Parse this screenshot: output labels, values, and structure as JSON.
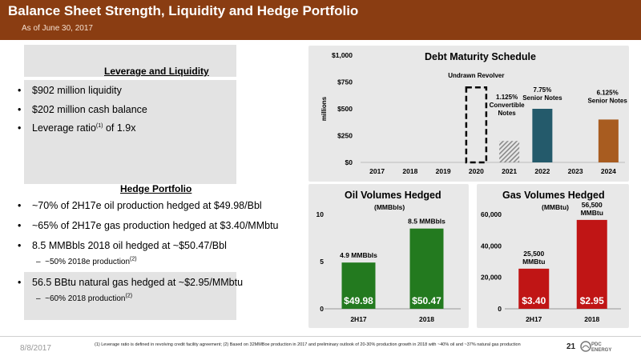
{
  "header": {
    "title": "Balance Sheet Strength, Liquidity and Hedge Portfolio",
    "subtitle": "As of June 30, 2017"
  },
  "leverage": {
    "heading": "Leverage and Liquidity",
    "bullets": [
      {
        "text": "$902 million liquidity"
      },
      {
        "text": "$202 million cash balance"
      },
      {
        "text_pre": "Leverage ratio",
        "sup": "(1)",
        "text_post": " of 1.9x"
      }
    ]
  },
  "hedge": {
    "heading": "Hedge Portfolio",
    "bullets": [
      {
        "text": "~70% of 2H17e oil production hedged at $49.98/Bbl"
      },
      {
        "text": "~65% of 2H17e gas production hedged at $3.40/MMbtu"
      },
      {
        "text": "8.5 MMBbls 2018 oil hedged at ~$50.47/Bbl"
      },
      {
        "text": "56.5 BBtu natural gas hedged at ~$2.95/MMbtu"
      }
    ],
    "sub_bullets": [
      {
        "text": "~50% 2018e production",
        "sup": "(2)"
      },
      {
        "text": "~60% 2018 production",
        "sup": "(2)"
      }
    ],
    "bullet_glyph": "•",
    "sub_glyph": "–"
  },
  "chart_data": [
    {
      "type": "bar",
      "title": "Debt Maturity Schedule",
      "ylabel": "millions",
      "categories": [
        "2017",
        "2018",
        "2019",
        "2020",
        "2021",
        "2022",
        "2023",
        "2024"
      ],
      "yticks": [
        "$0",
        "$250",
        "$500",
        "$750",
        "$1,000"
      ],
      "ylim": [
        0,
        1000
      ],
      "series": [
        {
          "name": "Undrawn Revolver",
          "values": [
            0,
            0,
            0,
            700,
            0,
            0,
            0,
            0
          ],
          "color": "#000000",
          "style": "dashed-outline"
        },
        {
          "name": "1.125% Convertible Notes",
          "values": [
            0,
            0,
            0,
            0,
            200,
            0,
            0,
            0
          ],
          "color": "#888888",
          "style": "hatched"
        },
        {
          "name": "7.75% Senior Notes",
          "values": [
            0,
            0,
            0,
            0,
            0,
            500,
            0,
            0
          ],
          "color": "#245a6b"
        },
        {
          "name": "6.125% Senior Notes",
          "values": [
            0,
            0,
            0,
            0,
            0,
            0,
            0,
            400
          ],
          "color": "#a85c20"
        }
      ],
      "annotations": [
        "Undrawn Revolver",
        "1.125% Convertible Notes",
        "7.75% Senior Notes",
        "6.125% Senior Notes"
      ],
      "annotation_lines": [
        [
          "Undrawn Revolver"
        ],
        [
          "1.125%",
          "Convertible",
          "Notes"
        ],
        [
          "7.75%",
          "Senior Notes"
        ],
        [
          "6.125%",
          "Senior Notes"
        ]
      ],
      "grid": false
    },
    {
      "type": "bar",
      "title": "Oil Volumes Hedged",
      "subtitle": "(MMBbls)",
      "categories": [
        "2H17",
        "2018"
      ],
      "values": [
        4.9,
        8.5
      ],
      "data_labels": [
        "4.9 MMBbls",
        "8.5 MMBbls"
      ],
      "price_labels": [
        "$49.98",
        "$50.47"
      ],
      "yticks": [
        "0",
        "5",
        "10"
      ],
      "ylim": [
        0,
        10
      ],
      "color": "#237a1f",
      "grid": false
    },
    {
      "type": "bar",
      "title": "Gas Volumes Hedged",
      "subtitle": "(MMBtu)",
      "categories": [
        "2H17",
        "2018"
      ],
      "values": [
        25500,
        56500
      ],
      "data_labels": [
        "25,500 MMBtu",
        "56,500 MMBtu"
      ],
      "data_label_lines": [
        [
          "25,500",
          "MMBtu"
        ],
        [
          "56,500",
          "MMBtu"
        ]
      ],
      "price_labels": [
        "$3.40",
        "$2.95"
      ],
      "yticks": [
        "0",
        "20,000",
        "40,000",
        "60,000"
      ],
      "ylim": [
        0,
        60000
      ],
      "color": "#c01515",
      "grid": false
    }
  ],
  "footer": {
    "date": "8/8/2017",
    "note": "(1) Leverage ratio is defined in revolving credit facility agreement; (2) Based on 32MMBoe production in 2017 and preliminary outlook of 20-30% production growth in 2018 with ~40% oil and ~37% natural gas production",
    "page": "21",
    "logo_line1": "PDC",
    "logo_line2": "ENERGY"
  }
}
